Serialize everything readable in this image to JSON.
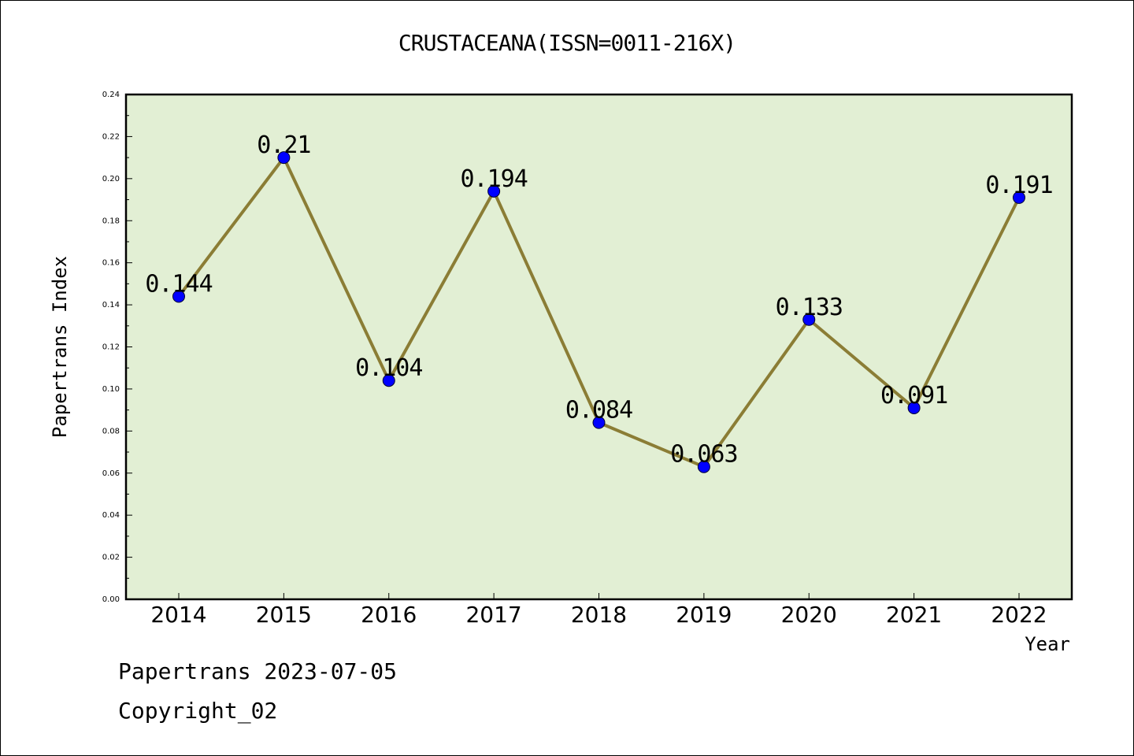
{
  "chart_data": {
    "type": "line",
    "title": "CRUSTACEANA(ISSN=0011-216X)",
    "xlabel": "Year",
    "ylabel": "Papertrans Index",
    "categories": [
      "2014",
      "2015",
      "2016",
      "2017",
      "2018",
      "2019",
      "2020",
      "2021",
      "2022"
    ],
    "series": [
      {
        "values": [
          0.144,
          0.21,
          0.104,
          0.194,
          0.084,
          0.063,
          0.133,
          0.091,
          0.191
        ],
        "labels": [
          "0.144",
          "0.21",
          "0.104",
          "0.194",
          "0.084",
          "0.063",
          "0.133",
          "0.091",
          "0.191"
        ]
      }
    ],
    "ylim": [
      0,
      0.24
    ],
    "yticks": [
      "0.00",
      "0.02",
      "0.04",
      "0.06",
      "0.08",
      "0.10",
      "0.12",
      "0.14",
      "0.16",
      "0.18",
      "0.20",
      "0.22",
      "0.24"
    ],
    "grid": false,
    "colors": {
      "plot_background": "#e2efd4",
      "line": "#8b7d35",
      "marker": "#0000ff",
      "axis": "#000000"
    }
  },
  "footer": {
    "line1": "Papertrans 2023-07-05",
    "line2": "Copyright_02"
  }
}
